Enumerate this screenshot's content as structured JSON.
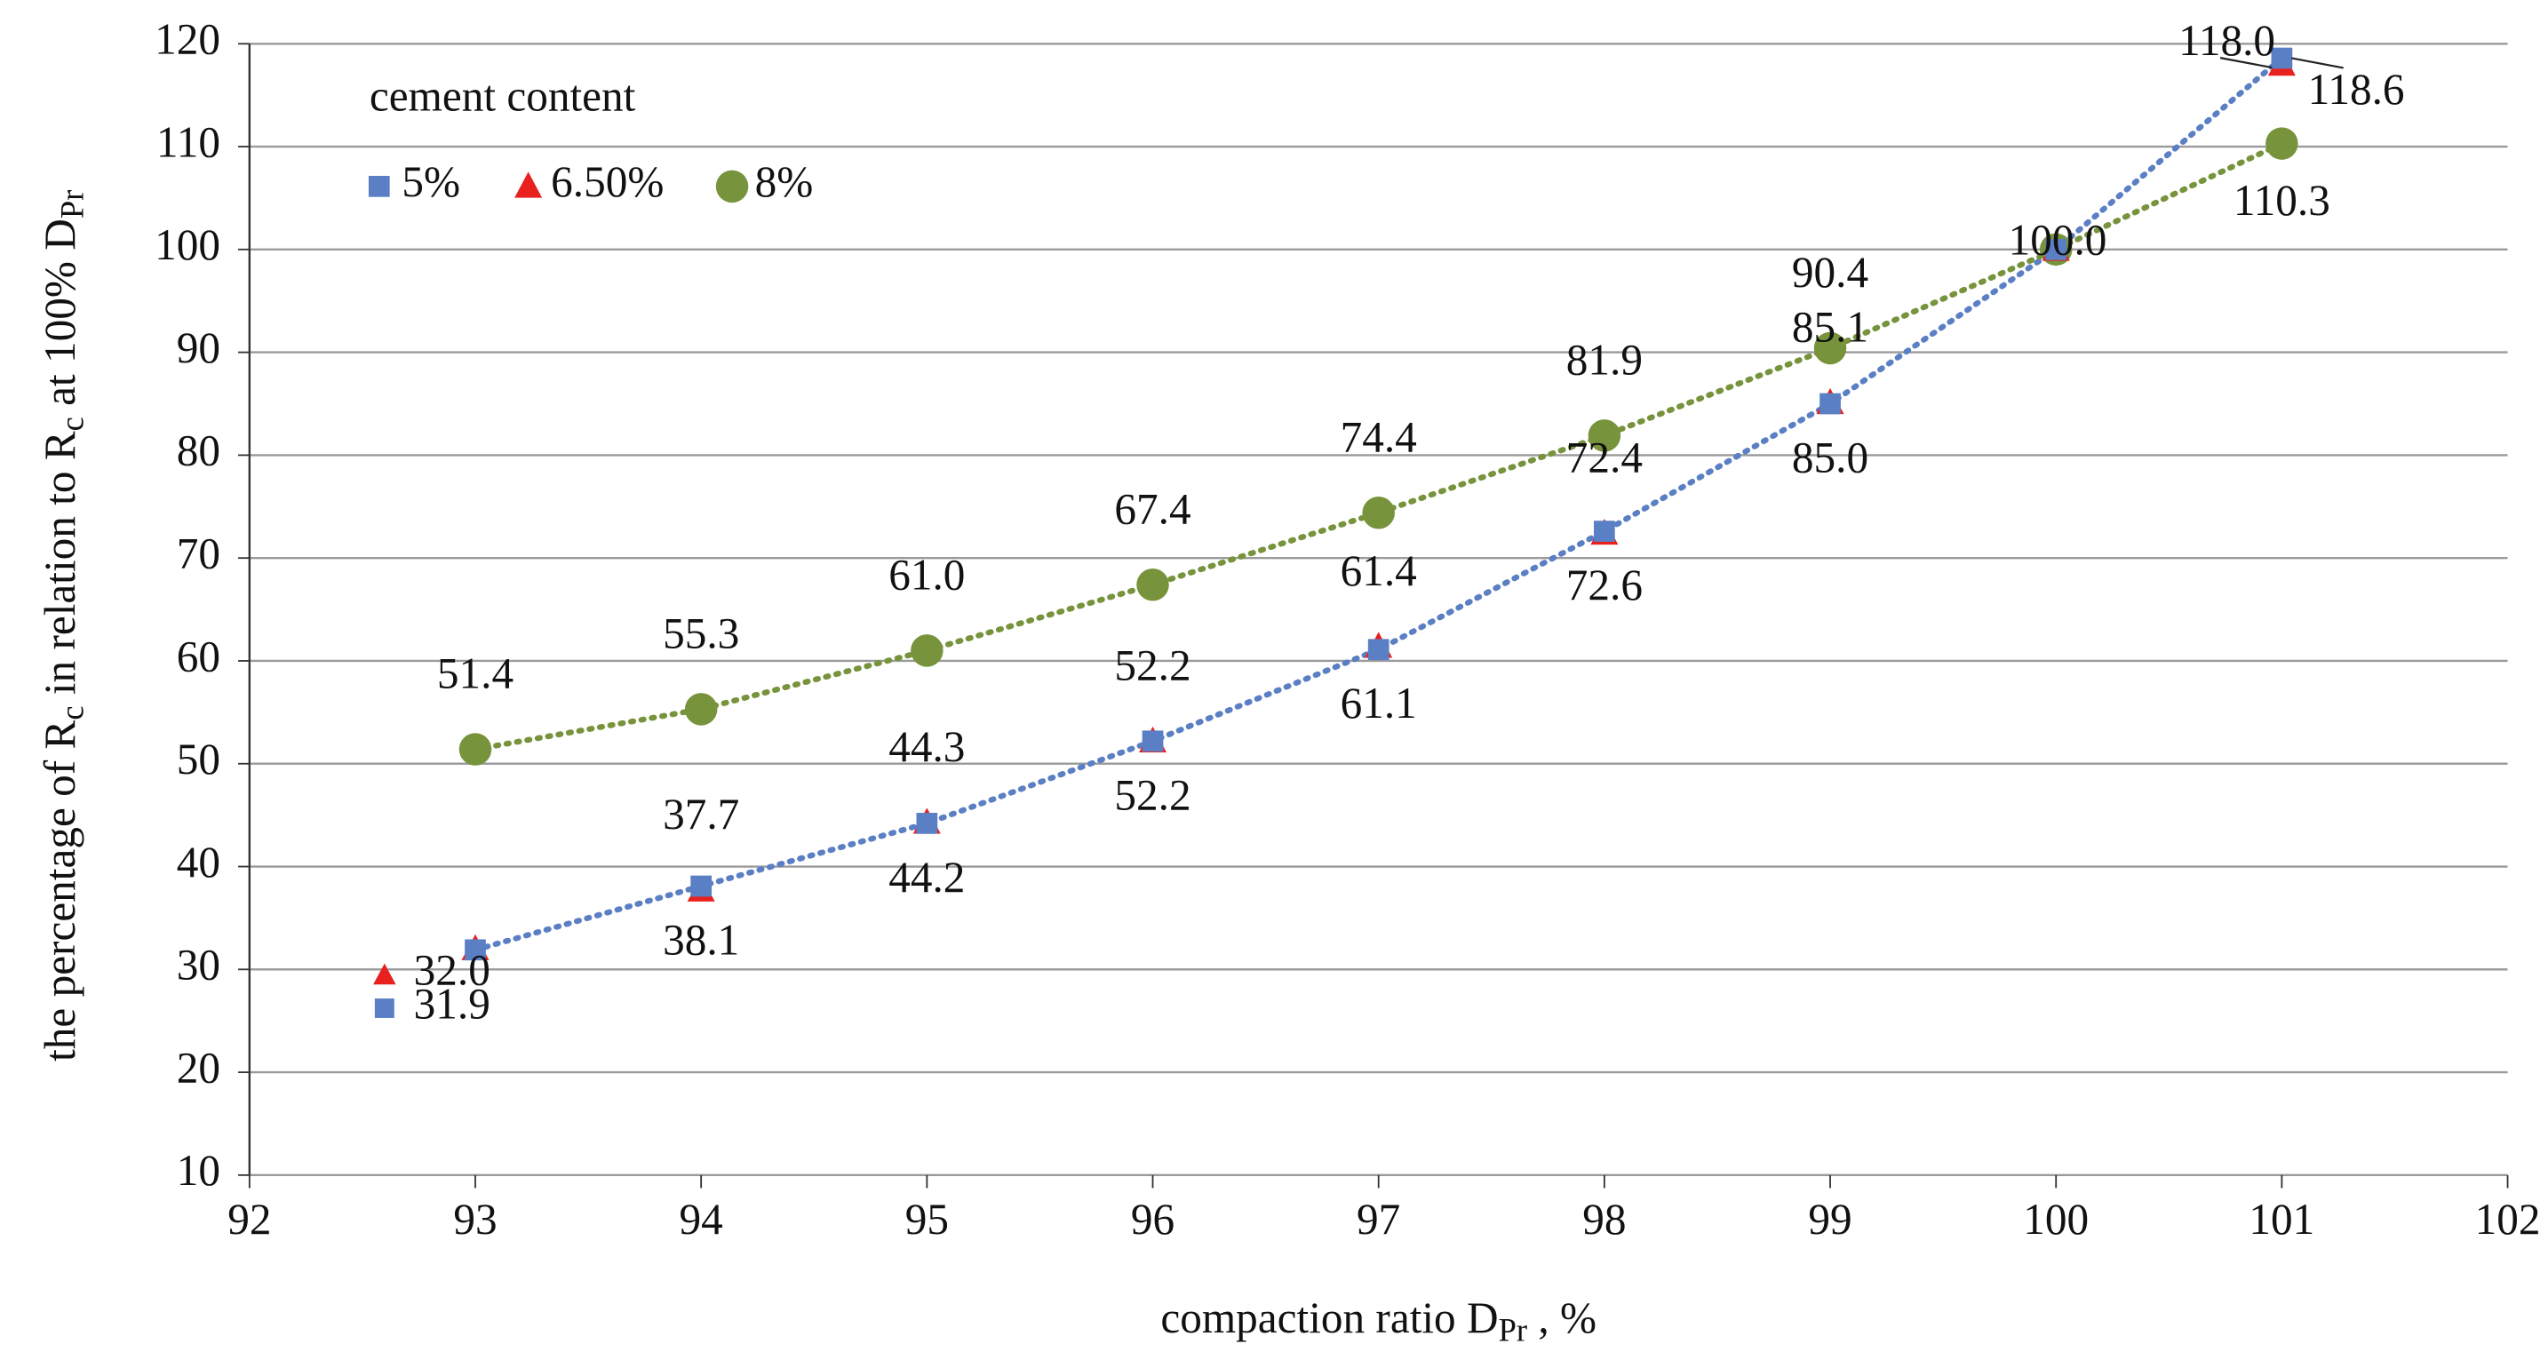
{
  "chart_data": {
    "type": "scatter",
    "x_label": [
      "compaction ratio D",
      "Pr",
      " , %"
    ],
    "y_label": [
      "the percentage of R",
      "c",
      "  in relation to R",
      "c",
      "  at 100% D",
      "Pr"
    ],
    "legend_title": "cement content",
    "x": [
      93,
      94,
      95,
      96,
      97,
      98,
      99,
      100,
      101
    ],
    "series": [
      {
        "name": "5%",
        "color": "#5b7fc4",
        "marker": "square",
        "trendline": true,
        "values": [
          31.9,
          38.1,
          44.2,
          52.2,
          61.1,
          72.6,
          85.0,
          100.0,
          118.6
        ],
        "value_labels": [
          "31.9",
          "38.1",
          "44.2",
          "52.2",
          "61.1",
          "72.6",
          "85.0",
          null,
          "118.6"
        ]
      },
      {
        "name": "6.50%",
        "color": "#e8211f",
        "marker": "triangle",
        "trendline": false,
        "values": [
          32.0,
          37.7,
          44.3,
          52.2,
          61.4,
          72.4,
          85.1,
          100.0,
          118.0
        ],
        "value_labels": [
          "32.0",
          "37.7",
          "44.3",
          "52.2",
          "61.4",
          "72.4",
          "85.1",
          null,
          "118.0"
        ]
      },
      {
        "name": "8%",
        "color": "#77933c",
        "marker": "circle",
        "trendline": true,
        "values": [
          51.4,
          55.3,
          61.0,
          67.4,
          74.4,
          81.9,
          90.4,
          100.0,
          110.3
        ],
        "value_labels": [
          "51.4",
          "55.3",
          "61.0",
          "67.4",
          "74.4",
          "81.9",
          "90.4",
          "100.0",
          "110.3"
        ]
      }
    ],
    "xlim": [
      92,
      102
    ],
    "xticks": [
      92,
      93,
      94,
      95,
      96,
      97,
      98,
      99,
      100,
      101,
      102
    ],
    "ylim": [
      10,
      120
    ],
    "yticks": [
      10,
      20,
      30,
      40,
      50,
      60,
      70,
      80,
      90,
      100,
      110,
      120
    ],
    "grid": true,
    "legend": "upper left"
  }
}
